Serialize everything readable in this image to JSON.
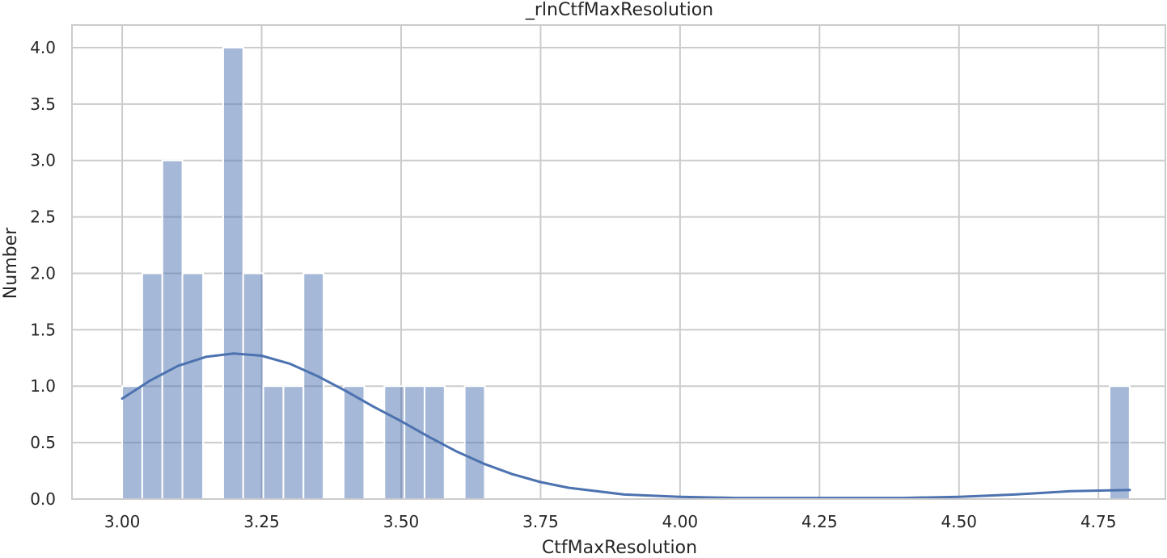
{
  "chart_data": {
    "type": "bar",
    "title": "_rlnCtfMaxResolution",
    "xlabel": "CtfMaxResolution",
    "ylabel": "Number",
    "xlim": [
      2.91,
      4.87
    ],
    "ylim": [
      0,
      4.2
    ],
    "grid": true,
    "xticks": [
      "3.00",
      "3.25",
      "3.50",
      "3.75",
      "4.00",
      "4.25",
      "4.50",
      "4.75"
    ],
    "xtick_values": [
      3.0,
      3.25,
      3.5,
      3.75,
      4.0,
      4.25,
      4.5,
      4.75
    ],
    "yticks": [
      "0.0",
      "0.5",
      "1.0",
      "1.5",
      "2.0",
      "2.5",
      "3.0",
      "3.5",
      "4.0"
    ],
    "ytick_values": [
      0,
      0.5,
      1.0,
      1.5,
      2.0,
      2.5,
      3.0,
      3.5,
      4.0
    ],
    "bin_edges": [
      3.0,
      3.036,
      3.072,
      3.108,
      3.145,
      3.181,
      3.217,
      3.253,
      3.289,
      3.325,
      3.361,
      3.397,
      3.434,
      3.47,
      3.506,
      3.542,
      3.578,
      3.614,
      3.65,
      3.686,
      3.723,
      3.759,
      3.795,
      3.831,
      3.867,
      3.903,
      3.939,
      3.975,
      4.012,
      4.048,
      4.084,
      4.12,
      4.156,
      4.192,
      4.228,
      4.264,
      4.301,
      4.337,
      4.373,
      4.409,
      4.445,
      4.481,
      4.517,
      4.553,
      4.59,
      4.626,
      4.662,
      4.698,
      4.734,
      4.77,
      4.806
    ],
    "values": [
      1,
      2,
      3,
      2,
      0,
      4,
      2,
      1,
      1,
      2,
      0,
      1,
      0,
      1,
      1,
      1,
      0,
      1,
      0,
      0,
      0,
      0,
      0,
      0,
      0,
      0,
      0,
      0,
      0,
      0,
      0,
      0,
      0,
      0,
      0,
      0,
      0,
      0,
      0,
      0,
      0,
      0,
      0,
      0,
      0,
      0,
      0,
      0,
      0,
      1
    ],
    "kde": {
      "x": [
        3.0,
        3.05,
        3.1,
        3.15,
        3.2,
        3.25,
        3.3,
        3.35,
        3.4,
        3.45,
        3.5,
        3.55,
        3.6,
        3.65,
        3.7,
        3.75,
        3.8,
        3.9,
        4.0,
        4.1,
        4.2,
        4.3,
        4.4,
        4.5,
        4.6,
        4.7,
        4.806
      ],
      "y": [
        0.89,
        1.05,
        1.18,
        1.26,
        1.29,
        1.27,
        1.2,
        1.09,
        0.96,
        0.82,
        0.69,
        0.55,
        0.42,
        0.31,
        0.22,
        0.15,
        0.1,
        0.04,
        0.02,
        0.01,
        0.01,
        0.01,
        0.01,
        0.02,
        0.04,
        0.07,
        0.08
      ]
    },
    "colors": {
      "bar": "#4c72b0",
      "kde": "#4c72b0",
      "grid": "#cccccc",
      "spine": "#cccccc"
    }
  }
}
